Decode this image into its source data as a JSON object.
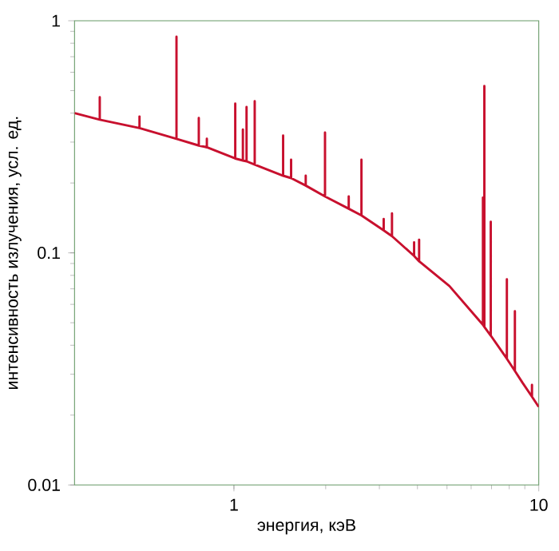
{
  "chart_data": {
    "type": "line",
    "xlabel": "энергия, кэВ",
    "ylabel": "интенсивность излучения, усл. ед.",
    "log": "xy",
    "xlim": [
      0.3,
      10
    ],
    "ylim": [
      0.01,
      1
    ],
    "xticks": [
      1,
      10
    ],
    "yticks": [
      0.01,
      0.1,
      1
    ],
    "marker": "none",
    "line_style": "solid",
    "series": [
      {
        "color": "#c8102e",
        "x": [
          0.3,
          0.363,
          0.363,
          0.363,
          0.49,
          0.49,
          0.49,
          0.648,
          0.648,
          0.648,
          0.767,
          0.767,
          0.767,
          0.815,
          0.815,
          0.815,
          1.01,
          1.01,
          1.01,
          1.07,
          1.07,
          1.07,
          1.1,
          1.1,
          1.1,
          1.17,
          1.17,
          1.17,
          1.45,
          1.45,
          1.45,
          1.54,
          1.54,
          1.54,
          1.72,
          1.72,
          1.72,
          1.99,
          1.99,
          1.99,
          2.38,
          2.38,
          2.38,
          2.62,
          2.62,
          2.62,
          3.1,
          3.1,
          3.1,
          3.3,
          3.3,
          3.3,
          3.9,
          3.9,
          3.9,
          4.05,
          4.05,
          4.05,
          5.09,
          6.56,
          6.56,
          6.56,
          6.63,
          6.63,
          6.63,
          6.96,
          6.96,
          6.96,
          7.86,
          7.86,
          7.86,
          8.35,
          8.35,
          8.35,
          8.84,
          9.5,
          9.5,
          9.5,
          10
        ],
        "values": [
          0.4,
          0.375,
          0.468,
          0.375,
          0.345,
          0.387,
          0.345,
          0.31,
          0.854,
          0.31,
          0.29,
          0.381,
          0.29,
          0.285,
          0.31,
          0.285,
          0.255,
          0.44,
          0.255,
          0.25,
          0.34,
          0.25,
          0.248,
          0.425,
          0.248,
          0.24,
          0.45,
          0.24,
          0.215,
          0.32,
          0.215,
          0.21,
          0.252,
          0.21,
          0.195,
          0.215,
          0.195,
          0.175,
          0.33,
          0.175,
          0.155,
          0.175,
          0.155,
          0.145,
          0.252,
          0.145,
          0.125,
          0.14,
          0.125,
          0.118,
          0.148,
          0.118,
          0.097,
          0.111,
          0.097,
          0.092,
          0.114,
          0.092,
          0.072,
          0.049,
          0.173,
          0.049,
          0.048,
          0.523,
          0.048,
          0.044,
          0.136,
          0.044,
          0.035,
          0.077,
          0.035,
          0.031,
          0.056,
          0.031,
          0.0276,
          0.024,
          0.027,
          0.024,
          0.0217
        ]
      }
    ]
  }
}
